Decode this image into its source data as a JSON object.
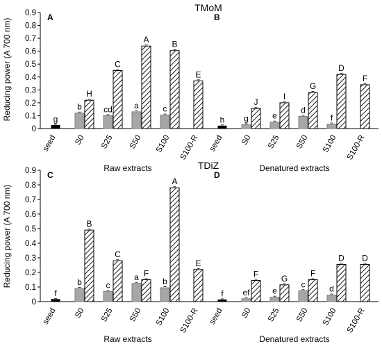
{
  "chart_data": [
    {
      "type": "bar",
      "title": "TMoM",
      "ylabel": "Reducing power (A 700 nm)",
      "ylim": [
        0,
        0.9
      ],
      "yticks": [
        "0",
        "0.1",
        "0.2",
        "0.3",
        "0.4",
        "0.5",
        "0.6",
        "0.7",
        "0.8",
        "0.9"
      ],
      "panels": [
        {
          "label": "A",
          "xlabel": "Raw extracts",
          "categories": [
            "seed",
            "S0",
            "S25",
            "S50",
            "S100",
            "S100-R"
          ],
          "series": [
            {
              "values": [
                0.025,
                null,
                null,
                null,
                null,
                null
              ],
              "letters": [
                "g",
                "",
                "",
                "",
                "",
                ""
              ]
            },
            {
              "values": [
                null,
                0.12,
                0.1,
                0.13,
                0.105,
                null
              ],
              "letters": [
                "",
                "b",
                "cd",
                "a",
                "c",
                ""
              ]
            },
            {
              "values": [
                null,
                0.22,
                0.45,
                0.64,
                0.605,
                0.37
              ],
              "letters": [
                "",
                "H",
                "C",
                "A",
                "B",
                "E"
              ]
            }
          ]
        },
        {
          "label": "B",
          "xlabel": "Denatured extracts",
          "categories": [
            "seed",
            "S0",
            "S25",
            "S50",
            "S100",
            "S100-R"
          ],
          "series": [
            {
              "values": [
                0.02,
                null,
                null,
                null,
                null,
                null
              ],
              "letters": [
                "h",
                "",
                "",
                "",
                "",
                ""
              ]
            },
            {
              "values": [
                null,
                0.03,
                0.05,
                0.095,
                0.035,
                null
              ],
              "letters": [
                "",
                "g",
                "e",
                "d",
                "f",
                ""
              ]
            },
            {
              "values": [
                null,
                0.155,
                0.2,
                0.28,
                0.42,
                0.34
              ],
              "letters": [
                "",
                "J",
                "I",
                "G",
                "D",
                "F"
              ]
            }
          ]
        }
      ]
    },
    {
      "type": "bar",
      "title": "TDiZ",
      "ylabel": "Reducing power (A 700 nm)",
      "ylim": [
        0,
        0.9
      ],
      "yticks": [
        "0",
        "0.1",
        "0.2",
        "0.3",
        "0.4",
        "0.5",
        "0.6",
        "0.7",
        "0.8",
        "0.9"
      ],
      "panels": [
        {
          "label": "C",
          "xlabel": "Raw extracts",
          "categories": [
            "seed",
            "S0",
            "S25",
            "S50",
            "S100",
            "S100-R"
          ],
          "series": [
            {
              "values": [
                0.015,
                null,
                null,
                null,
                null,
                null
              ],
              "letters": [
                "f",
                "",
                "",
                "",
                "",
                ""
              ]
            },
            {
              "values": [
                null,
                0.09,
                0.07,
                0.125,
                0.095,
                null
              ],
              "letters": [
                "",
                "b",
                "c",
                "a",
                "b",
                ""
              ]
            },
            {
              "values": [
                null,
                0.49,
                0.28,
                0.15,
                0.78,
                0.22
              ],
              "letters": [
                "",
                "B",
                "C",
                "F",
                "A",
                "E"
              ]
            }
          ]
        },
        {
          "label": "D",
          "xlabel": "Denatured extracts",
          "categories": [
            "seed",
            "S0",
            "S25",
            "S50",
            "S100",
            "S100-R"
          ],
          "series": [
            {
              "values": [
                0.012,
                null,
                null,
                null,
                null,
                null
              ],
              "letters": [
                "f",
                "",
                "",
                "",
                "",
                ""
              ]
            },
            {
              "values": [
                null,
                0.02,
                0.03,
                0.075,
                0.045,
                null
              ],
              "letters": [
                "",
                "ef",
                "e",
                "c",
                "d",
                ""
              ]
            },
            {
              "values": [
                null,
                0.145,
                0.115,
                0.15,
                0.255,
                0.255
              ],
              "letters": [
                "",
                "F",
                "G",
                "F",
                "D",
                "D"
              ]
            }
          ]
        }
      ]
    }
  ],
  "colors": {
    "seed": "#000000",
    "gray": "#a6a6a6",
    "hatch": "#000000",
    "axis": "#000000"
  }
}
